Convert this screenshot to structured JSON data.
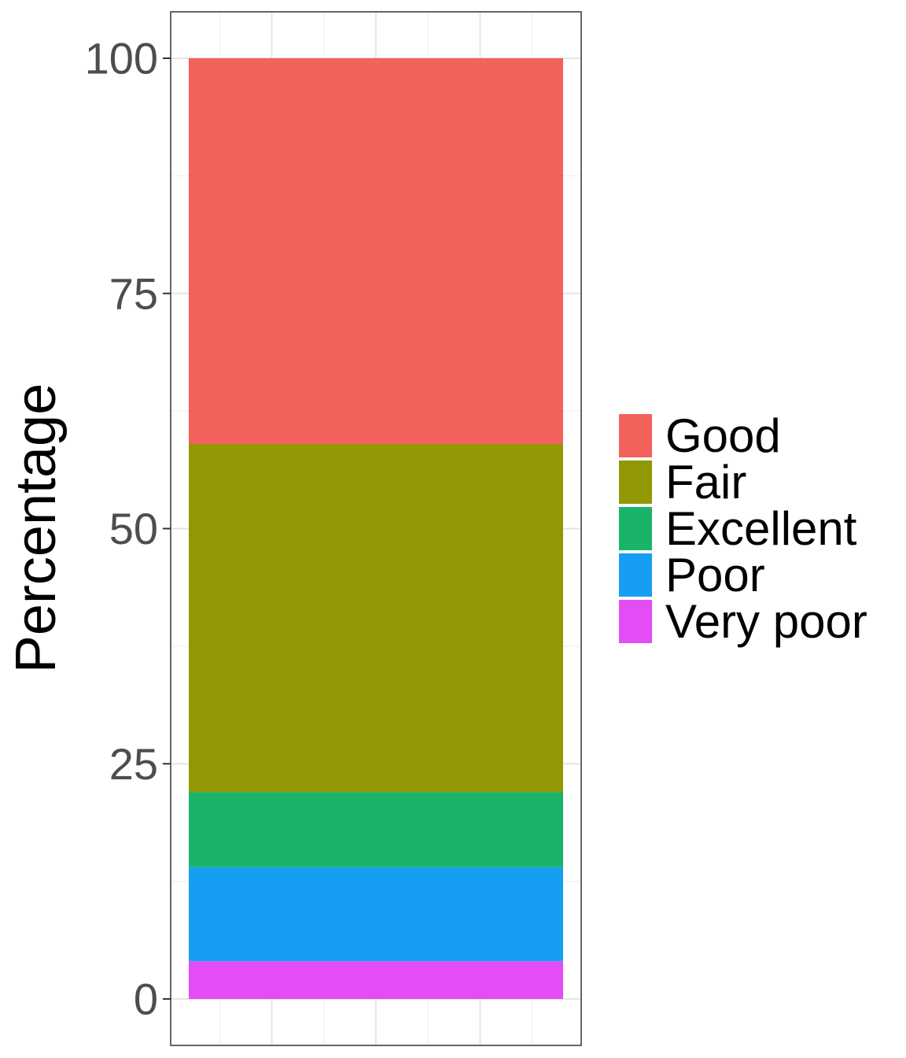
{
  "chart_data": {
    "type": "bar",
    "stacked": true,
    "categories": [
      ""
    ],
    "series": [
      {
        "name": "Very poor",
        "values": [
          4
        ],
        "color": "#E44CF5"
      },
      {
        "name": "Poor",
        "values": [
          10
        ],
        "color": "#169FF2"
      },
      {
        "name": "Excellent",
        "values": [
          8
        ],
        "color": "#19B46A"
      },
      {
        "name": "Fair",
        "values": [
          37
        ],
        "color": "#929804"
      },
      {
        "name": "Good",
        "values": [
          41
        ],
        "color": "#F3615C"
      }
    ],
    "title": "",
    "xlabel": "",
    "ylabel": "Percentage",
    "ylim": [
      0,
      100
    ],
    "yticks": [
      0,
      25,
      50,
      75,
      100
    ],
    "legend_order": [
      "Good",
      "Fair",
      "Excellent",
      "Poor",
      "Very poor"
    ],
    "legend_position": "right",
    "grid": true
  }
}
